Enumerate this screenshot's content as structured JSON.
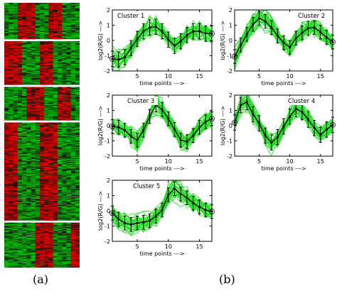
{
  "panel_labels": {
    "a": "(a)",
    "b": "(b)"
  },
  "colors": {
    "line": "#22dd22",
    "mean": "#000000",
    "heat_up": "#e60000",
    "heat_down": "#00c000",
    "heat_mid": "#141414"
  },
  "chart_data": [
    {
      "type": "heatmap",
      "description_visible": "gene expression heatmap in 5 blocks, red = up, green = down",
      "blocks": [
        {
          "rows": 50,
          "up_columns": [
            4,
            5,
            6,
            7,
            11,
            12,
            13
          ]
        },
        {
          "rows": 60,
          "up_columns": [
            1,
            2,
            3,
            4,
            9,
            10,
            11
          ]
        },
        {
          "rows": 46,
          "up_columns": [
            6,
            7,
            8,
            9,
            13,
            14,
            15
          ]
        },
        {
          "rows": 135,
          "up_columns": [
            1,
            2,
            3,
            9,
            10,
            11,
            12
          ]
        },
        {
          "rows": 62,
          "up_columns": [
            8,
            9,
            10,
            11,
            16,
            17
          ]
        }
      ],
      "columns": 17
    },
    {
      "type": "line",
      "title": "Cluster 1",
      "xlabel": "time points --->",
      "ylabel": "log2(R/G) --->",
      "xlim": [
        1,
        17
      ],
      "ylim": [
        -2,
        2
      ],
      "xticks": [
        5,
        10,
        15
      ],
      "yticks": [
        -2,
        -1,
        0,
        1,
        2
      ],
      "x": [
        1,
        2,
        3,
        4,
        5,
        6,
        7,
        8,
        9,
        10,
        11,
        12,
        13,
        14,
        15,
        16,
        17
      ],
      "mean": [
        -1.2,
        -1.25,
        -1.1,
        -0.5,
        0.1,
        0.6,
        0.85,
        0.9,
        0.6,
        0.05,
        -0.35,
        -0.05,
        0.35,
        0.6,
        0.6,
        0.45,
        0.45
      ],
      "error": 0.5,
      "profiles": 30
    },
    {
      "type": "line",
      "title": "Cluster 2",
      "xlabel": "time points --->",
      "ylabel": "log2(R/G) --->",
      "xlim": [
        1,
        17
      ],
      "ylim": [
        -2,
        2
      ],
      "xticks": [
        5,
        10,
        15
      ],
      "yticks": [
        -2,
        -1,
        0,
        1,
        2
      ],
      "x": [
        1,
        2,
        3,
        4,
        5,
        6,
        7,
        8,
        9,
        10,
        11,
        12,
        13,
        14,
        15,
        16,
        17
      ],
      "mean": [
        -1.05,
        -0.3,
        0.4,
        1.05,
        1.45,
        1.25,
        0.85,
        0.3,
        -0.15,
        -0.45,
        0.15,
        0.5,
        0.8,
        0.85,
        0.55,
        0.2,
        -0.1
      ],
      "error": 0.45,
      "profiles": 30
    },
    {
      "type": "line",
      "title": "Cluster 3",
      "xlabel": "time points --->",
      "ylabel": "log2(R/G) --->",
      "xlim": [
        1,
        17
      ],
      "ylim": [
        -2,
        2
      ],
      "xticks": [
        5,
        10,
        15
      ],
      "yticks": [
        -2,
        -1,
        0,
        1,
        2
      ],
      "x": [
        1,
        2,
        3,
        4,
        5,
        6,
        7,
        8,
        9,
        10,
        11,
        12,
        13,
        14,
        15,
        16,
        17
      ],
      "mean": [
        -0.05,
        -0.1,
        -0.3,
        -0.7,
        -0.95,
        -0.3,
        0.6,
        1.35,
        1.05,
        0.45,
        -0.25,
        -0.95,
        -1.05,
        -0.65,
        -0.1,
        0.25,
        0.45
      ],
      "error": 0.45,
      "profiles": 30
    },
    {
      "type": "line",
      "title": "Cluster 4",
      "xlabel": "time points --->",
      "ylabel": "log2(R/G) --->",
      "xlim": [
        1,
        17
      ],
      "ylim": [
        -2,
        2
      ],
      "xticks": [
        5,
        10,
        15
      ],
      "yticks": [
        -2,
        -1,
        0,
        1,
        2
      ],
      "x": [
        1,
        2,
        3,
        4,
        5,
        6,
        7,
        8,
        9,
        10,
        11,
        12,
        13,
        14,
        15,
        16,
        17
      ],
      "mean": [
        0.2,
        1.35,
        1.55,
        0.75,
        0.15,
        -0.65,
        -1.1,
        -0.75,
        -0.05,
        0.6,
        1.1,
        0.9,
        0.4,
        -0.15,
        -0.6,
        -0.25,
        0.05
      ],
      "error": 0.5,
      "profiles": 30
    },
    {
      "type": "line",
      "title": "Cluster 5",
      "xlabel": "time points --->",
      "ylabel": "log2(R/G) --->",
      "xlim": [
        1,
        17
      ],
      "ylim": [
        -2,
        2
      ],
      "xticks": [
        5,
        10,
        15
      ],
      "yticks": [
        -2,
        -1,
        0,
        1,
        2
      ],
      "x": [
        1,
        2,
        3,
        4,
        5,
        6,
        7,
        8,
        9,
        10,
        11,
        12,
        13,
        14,
        15,
        16,
        17
      ],
      "mean": [
        -0.15,
        -0.55,
        -0.8,
        -0.9,
        -0.8,
        -0.75,
        -0.65,
        -0.35,
        0.05,
        1.05,
        1.45,
        1.1,
        0.85,
        0.5,
        0.25,
        0.05,
        -0.05
      ],
      "error": 0.45,
      "profiles": 30
    }
  ]
}
